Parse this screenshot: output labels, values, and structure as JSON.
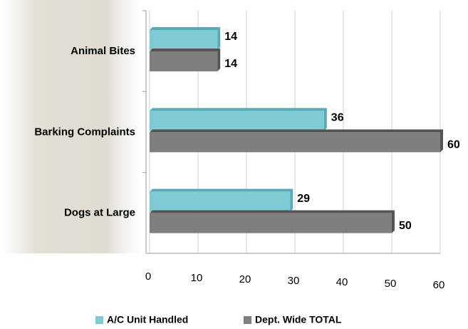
{
  "chart_data": {
    "type": "bar",
    "orientation": "horizontal",
    "categories": [
      "Animal Bites",
      "Barking Complaints",
      "Dogs at Large"
    ],
    "series": [
      {
        "name": "A/C Unit Handled",
        "color": "#7ecbd6",
        "values": [
          14,
          36,
          29
        ]
      },
      {
        "name": "Dept. Wide TOTAL",
        "color": "#7f7f7f",
        "values": [
          14,
          60,
          50
        ]
      }
    ],
    "xlim": [
      0,
      60
    ],
    "xticks": [
      0,
      10,
      20,
      30,
      40,
      50,
      60
    ],
    "grid": true,
    "legend": "bottom"
  }
}
